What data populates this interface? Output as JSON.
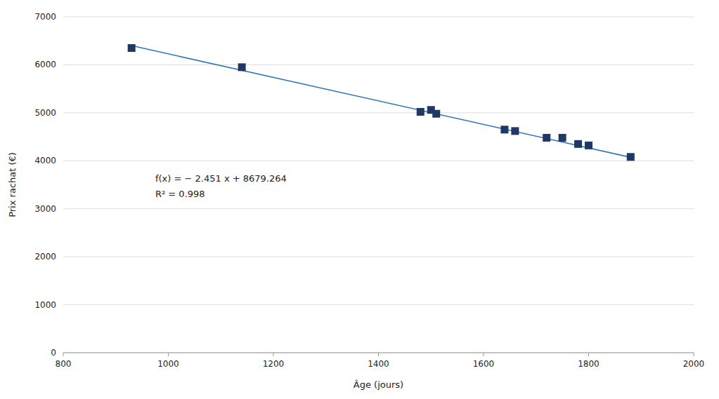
{
  "chart_data": {
    "type": "scatter",
    "xlabel": "Âge (jours)",
    "ylabel": "Prix rachat (€)",
    "xlim": [
      800,
      2000
    ],
    "ylim": [
      0,
      7000
    ],
    "xticks": [
      800,
      1000,
      1200,
      1400,
      1600,
      1800,
      2000
    ],
    "yticks": [
      0,
      1000,
      2000,
      3000,
      4000,
      5000,
      6000,
      7000
    ],
    "grid": true,
    "series": [
      {
        "type": "line",
        "color": "#2E75B6",
        "x": [
          930,
          1880
        ],
        "values": [
          6399.834,
          4071.384
        ]
      },
      {
        "type": "scatter",
        "color": "#1F3864",
        "marker": "square",
        "x": [
          930,
          1140,
          1480,
          1500,
          1510,
          1640,
          1660,
          1720,
          1750,
          1780,
          1800,
          1880
        ],
        "values": [
          6350,
          5950,
          5020,
          5060,
          4980,
          4650,
          4620,
          4480,
          4480,
          4350,
          4320,
          4080
        ]
      }
    ],
    "annotations": [
      "f(x) = − 2.451 x + 8679.264",
      "R² = 0.998"
    ]
  }
}
